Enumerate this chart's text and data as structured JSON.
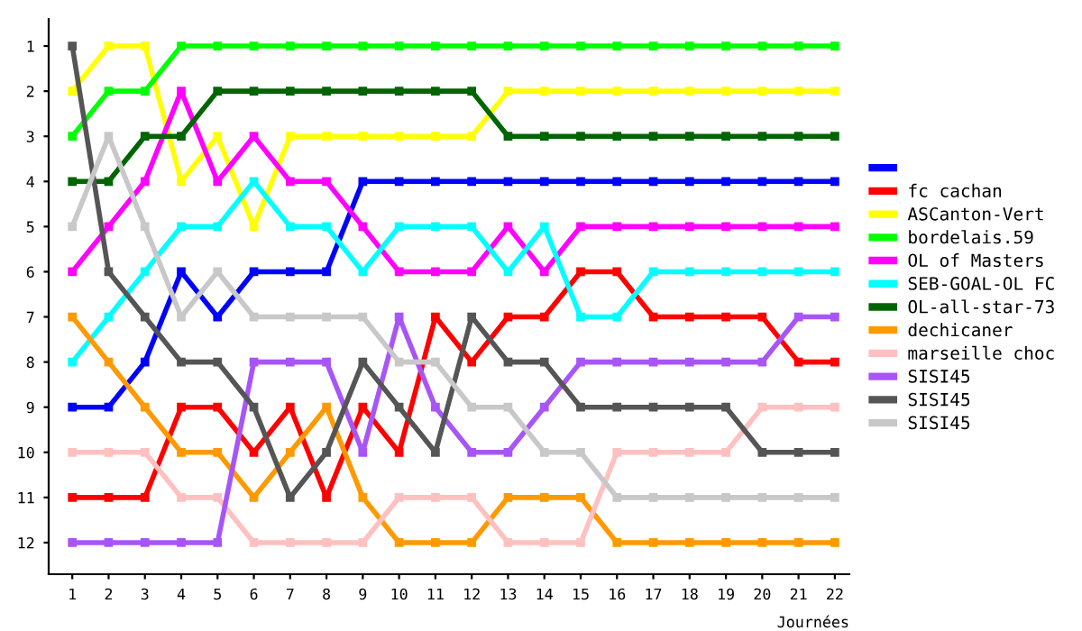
{
  "chart_data": {
    "type": "line",
    "xlabel": "Journées",
    "x": [
      1,
      2,
      3,
      4,
      5,
      6,
      7,
      8,
      9,
      10,
      11,
      12,
      13,
      14,
      15,
      16,
      17,
      18,
      19,
      20,
      21,
      22
    ],
    "xlim": [
      0.35,
      22.4
    ],
    "xticks": [
      1,
      2,
      3,
      4,
      5,
      6,
      7,
      8,
      9,
      10,
      11,
      12,
      13,
      14,
      15,
      16,
      17,
      18,
      19,
      20,
      21,
      22
    ],
    "ylim": [
      12.7,
      0.4
    ],
    "yticks": [
      1,
      2,
      3,
      4,
      5,
      6,
      7,
      8,
      9,
      10,
      11,
      12
    ],
    "grid": false,
    "legend": "right",
    "marker": "square",
    "line_style": "solid",
    "series": [
      {
        "color": "#0000ff",
        "values": [
          9,
          9,
          8,
          6,
          7,
          6,
          6,
          6,
          4,
          4,
          4,
          4,
          4,
          4,
          4,
          4,
          4,
          4,
          4,
          4,
          4,
          4
        ]
      },
      {
        "name": "fc cachan",
        "color": "#ff0000",
        "values": [
          11,
          11,
          11,
          9,
          9,
          10,
          9,
          11,
          9,
          10,
          7,
          8,
          7,
          7,
          6,
          6,
          7,
          7,
          7,
          7,
          8,
          8
        ]
      },
      {
        "name": "ASCanton-Vert",
        "color": "#ffff00",
        "values": [
          2,
          1,
          1,
          4,
          3,
          5,
          3,
          3,
          3,
          3,
          3,
          3,
          2,
          2,
          2,
          2,
          2,
          2,
          2,
          2,
          2,
          2
        ]
      },
      {
        "name": "bordelais.59",
        "color": "#00ff00",
        "values": [
          3,
          2,
          2,
          1,
          1,
          1,
          1,
          1,
          1,
          1,
          1,
          1,
          1,
          1,
          1,
          1,
          1,
          1,
          1,
          1,
          1,
          1
        ]
      },
      {
        "name": "OL of Masters",
        "color": "#ff00ff",
        "values": [
          6,
          5,
          4,
          2,
          4,
          3,
          4,
          4,
          5,
          6,
          6,
          6,
          5,
          6,
          5,
          5,
          5,
          5,
          5,
          5,
          5,
          5
        ]
      },
      {
        "name": "SEB-GOAL-OL FC",
        "color": "#00ffff",
        "values": [
          8,
          7,
          6,
          5,
          5,
          4,
          5,
          5,
          6,
          5,
          5,
          5,
          6,
          5,
          7,
          7,
          6,
          6,
          6,
          6,
          6,
          6
        ]
      },
      {
        "name": "OL-all-star-73",
        "color": "#006400",
        "values": [
          4,
          4,
          3,
          3,
          2,
          2,
          2,
          2,
          2,
          2,
          2,
          2,
          3,
          3,
          3,
          3,
          3,
          3,
          3,
          3,
          3,
          3
        ]
      },
      {
        "name": "dechicaner",
        "color": "#ff9900",
        "values": [
          7,
          8,
          9,
          10,
          10,
          11,
          10,
          9,
          11,
          12,
          12,
          12,
          11,
          11,
          11,
          12,
          12,
          12,
          12,
          12,
          12,
          12
        ]
      },
      {
        "name": "marseille choc",
        "color": "#ffc0c0",
        "values": [
          10,
          10,
          10,
          11,
          11,
          12,
          12,
          12,
          12,
          11,
          11,
          11,
          12,
          12,
          12,
          10,
          10,
          10,
          10,
          9,
          9,
          9
        ]
      },
      {
        "name": "SISI45",
        "color": "#a855f7",
        "values": [
          12,
          12,
          12,
          12,
          12,
          8,
          8,
          8,
          10,
          7,
          9,
          10,
          10,
          9,
          8,
          8,
          8,
          8,
          8,
          8,
          7,
          7
        ]
      },
      {
        "name": "SISI45",
        "color": "#555555",
        "values": [
          1,
          6,
          7,
          8,
          8,
          9,
          11,
          10,
          8,
          9,
          10,
          7,
          8,
          8,
          9,
          9,
          9,
          9,
          9,
          10,
          10,
          10
        ]
      },
      {
        "name": "SISI45",
        "color": "#c8c8c8",
        "values": [
          5,
          3,
          5,
          7,
          6,
          7,
          7,
          7,
          7,
          8,
          8,
          9,
          9,
          10,
          10,
          11,
          11,
          11,
          11,
          11,
          11,
          11
        ]
      }
    ]
  }
}
